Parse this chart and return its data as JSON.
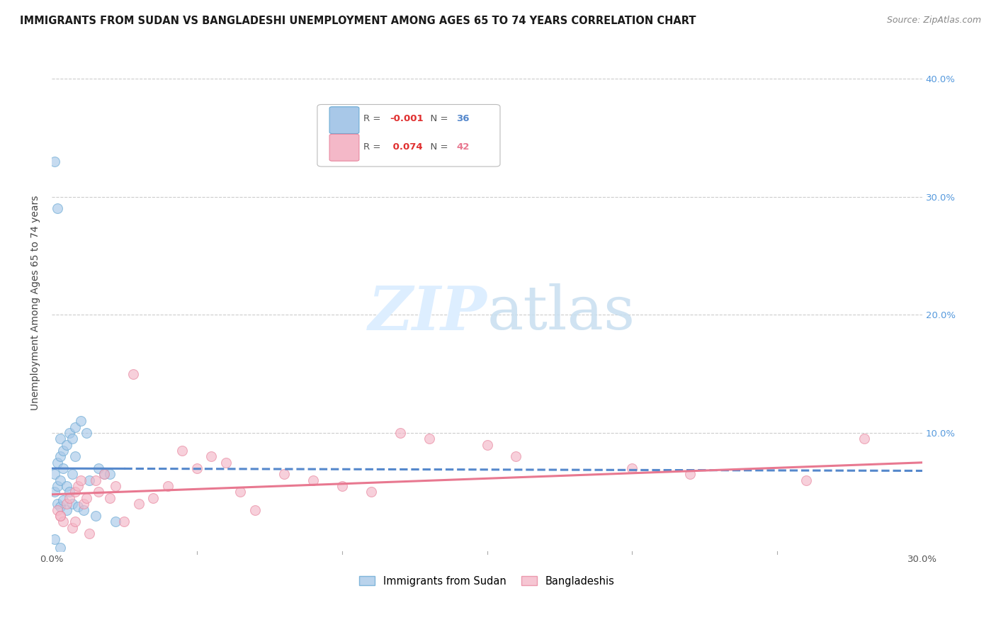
{
  "title": "IMMIGRANTS FROM SUDAN VS BANGLADESHI UNEMPLOYMENT AMONG AGES 65 TO 74 YEARS CORRELATION CHART",
  "source": "Source: ZipAtlas.com",
  "ylabel": "Unemployment Among Ages 65 to 74 years",
  "xlim": [
    0.0,
    0.3
  ],
  "ylim": [
    0.0,
    0.42
  ],
  "color_blue": "#a8c8e8",
  "color_blue_edge": "#6aaad4",
  "color_blue_line": "#5588cc",
  "color_pink": "#f4b8c8",
  "color_pink_edge": "#e888a0",
  "color_pink_line": "#e87890",
  "grid_color": "#cccccc",
  "background_color": "#ffffff",
  "watermark_color": "#ddeeff",
  "sudan_x": [
    0.001,
    0.001,
    0.002,
    0.002,
    0.002,
    0.003,
    0.003,
    0.003,
    0.003,
    0.004,
    0.004,
    0.004,
    0.005,
    0.005,
    0.005,
    0.006,
    0.006,
    0.007,
    0.007,
    0.007,
    0.008,
    0.008,
    0.009,
    0.01,
    0.011,
    0.012,
    0.013,
    0.015,
    0.016,
    0.018,
    0.02,
    0.022,
    0.001,
    0.002,
    0.003,
    0.001
  ],
  "sudan_y": [
    0.05,
    0.065,
    0.04,
    0.055,
    0.075,
    0.038,
    0.06,
    0.08,
    0.095,
    0.043,
    0.07,
    0.085,
    0.035,
    0.055,
    0.09,
    0.05,
    0.1,
    0.04,
    0.065,
    0.095,
    0.08,
    0.105,
    0.038,
    0.11,
    0.035,
    0.1,
    0.06,
    0.03,
    0.07,
    0.065,
    0.065,
    0.025,
    0.33,
    0.29,
    0.003,
    0.01
  ],
  "bangla_x": [
    0.002,
    0.003,
    0.004,
    0.005,
    0.006,
    0.007,
    0.008,
    0.009,
    0.01,
    0.011,
    0.012,
    0.013,
    0.015,
    0.016,
    0.018,
    0.02,
    0.022,
    0.025,
    0.028,
    0.03,
    0.035,
    0.04,
    0.045,
    0.05,
    0.055,
    0.06,
    0.065,
    0.07,
    0.08,
    0.09,
    0.1,
    0.11,
    0.12,
    0.13,
    0.15,
    0.16,
    0.2,
    0.22,
    0.26,
    0.28,
    0.003,
    0.008
  ],
  "bangla_y": [
    0.035,
    0.03,
    0.025,
    0.04,
    0.045,
    0.02,
    0.05,
    0.055,
    0.06,
    0.04,
    0.045,
    0.015,
    0.06,
    0.05,
    0.065,
    0.045,
    0.055,
    0.025,
    0.15,
    0.04,
    0.045,
    0.055,
    0.085,
    0.07,
    0.08,
    0.075,
    0.05,
    0.035,
    0.065,
    0.06,
    0.055,
    0.05,
    0.1,
    0.095,
    0.09,
    0.08,
    0.07,
    0.065,
    0.06,
    0.095,
    0.03,
    0.025
  ],
  "marker_size": 100,
  "sudan_line_y0": 0.07,
  "sudan_line_y1": 0.068,
  "bangla_line_y0": 0.048,
  "bangla_line_y1": 0.075
}
